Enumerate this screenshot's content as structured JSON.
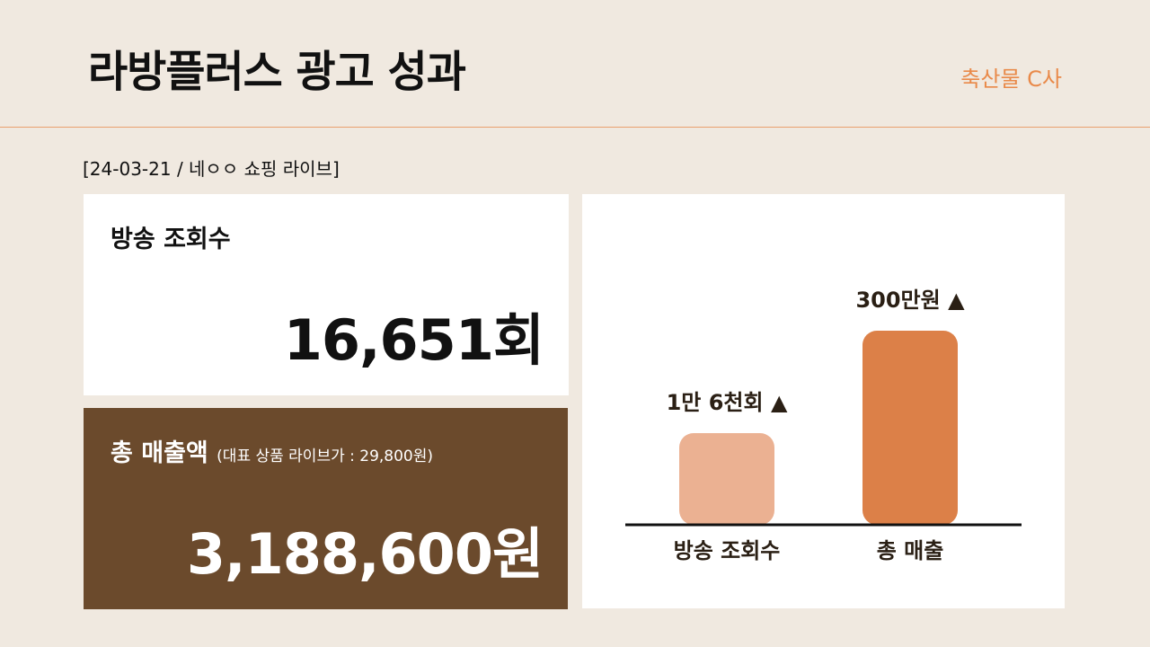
{
  "header": {
    "title": "라방플러스 광고 성과",
    "client": "축산물 C사"
  },
  "subtitle": "[24-03-21 / 네ㅇㅇ 쇼핑 라이브]",
  "cards": [
    {
      "title": "방송 조회수",
      "value": "16,651회"
    },
    {
      "title": "총 매출액",
      "note": "(대표 상품 라이브가 : 29,800원)",
      "value": "3,188,600원"
    }
  ],
  "chart": {
    "categories": [
      "방송 조회수",
      "총 매출"
    ],
    "labels": [
      "1만 6천회 ▲",
      "300만원 ▲"
    ]
  }
}
